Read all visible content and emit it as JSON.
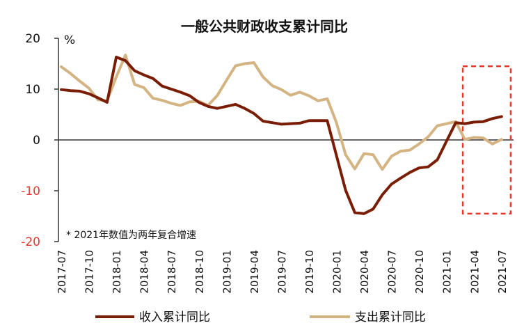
{
  "chart_data": {
    "type": "line",
    "title": "一般公共财政收支累计同比",
    "unit_label": "%",
    "note": "* 2021年数值为两年复合增速",
    "ylim": [
      -20,
      20
    ],
    "yticks": [
      {
        "value": 20,
        "label": "20",
        "color": "#111111"
      },
      {
        "value": 10,
        "label": "10",
        "color": "#111111"
      },
      {
        "value": 0,
        "label": "0",
        "color": "#111111"
      },
      {
        "value": -10,
        "label": "-10",
        "color": "#e8382e"
      },
      {
        "value": -20,
        "label": "-20",
        "color": "#e8382e"
      }
    ],
    "xlim": [
      "2017-07",
      "2021-08"
    ],
    "xtick_labels": [
      "2017-07",
      "2017-10",
      "2018-01",
      "2018-04",
      "2018-07",
      "2018-10",
      "2019-01",
      "2019-04",
      "2019-07",
      "2019-10",
      "2020-01",
      "2020-04",
      "2020-07",
      "2020-10",
      "2021-01",
      "2021-04",
      "2021-07"
    ],
    "highlight_box": {
      "from": "2021-03",
      "to": "2021-08",
      "ymin": -14.5,
      "ymax": 14.5,
      "color": "#e8382e",
      "style": "dashed"
    },
    "series": [
      {
        "name": "收入累计同比",
        "color": "#7a1d05",
        "points": [
          [
            "2017-07",
            9.9
          ],
          [
            "2017-08",
            9.7
          ],
          [
            "2017-09",
            9.6
          ],
          [
            "2017-10",
            9.1
          ],
          [
            "2017-11",
            8.3
          ],
          [
            "2017-12",
            7.4
          ],
          [
            "2018-01",
            16.3
          ],
          [
            "2018-02",
            15.6
          ],
          [
            "2018-03",
            13.6
          ],
          [
            "2018-04",
            12.8
          ],
          [
            "2018-05",
            12.1
          ],
          [
            "2018-06",
            10.6
          ],
          [
            "2018-07",
            10.0
          ],
          [
            "2018-08",
            9.4
          ],
          [
            "2018-09",
            8.7
          ],
          [
            "2018-10",
            7.4
          ],
          [
            "2018-11",
            6.6
          ],
          [
            "2018-12",
            6.2
          ],
          [
            "2019-01",
            6.6
          ],
          [
            "2019-02",
            7.0
          ],
          [
            "2019-03",
            6.2
          ],
          [
            "2019-04",
            5.2
          ],
          [
            "2019-05",
            3.7
          ],
          [
            "2019-06",
            3.4
          ],
          [
            "2019-07",
            3.1
          ],
          [
            "2019-08",
            3.2
          ],
          [
            "2019-09",
            3.3
          ],
          [
            "2019-10",
            3.8
          ],
          [
            "2019-11",
            3.8
          ],
          [
            "2019-12",
            3.8
          ],
          [
            "2020-02",
            -9.9
          ],
          [
            "2020-03",
            -14.3
          ],
          [
            "2020-04",
            -14.5
          ],
          [
            "2020-05",
            -13.6
          ],
          [
            "2020-06",
            -10.8
          ],
          [
            "2020-07",
            -8.7
          ],
          [
            "2020-08",
            -7.5
          ],
          [
            "2020-09",
            -6.4
          ],
          [
            "2020-10",
            -5.5
          ],
          [
            "2020-11",
            -5.3
          ],
          [
            "2020-12",
            -3.9
          ],
          [
            "2021-02",
            3.4
          ],
          [
            "2021-03",
            3.2
          ],
          [
            "2021-04",
            3.5
          ],
          [
            "2021-05",
            3.6
          ],
          [
            "2021-06",
            4.2
          ],
          [
            "2021-07",
            4.6
          ]
        ]
      },
      {
        "name": "支出累计同比",
        "color": "#d4b483",
        "points": [
          [
            "2017-07",
            14.4
          ],
          [
            "2017-08",
            13.1
          ],
          [
            "2017-09",
            11.6
          ],
          [
            "2017-10",
            10.2
          ],
          [
            "2017-11",
            7.9
          ],
          [
            "2017-12",
            7.7
          ],
          [
            "2018-01",
            12.4
          ],
          [
            "2018-02",
            16.7
          ],
          [
            "2018-03",
            10.9
          ],
          [
            "2018-04",
            10.3
          ],
          [
            "2018-05",
            8.2
          ],
          [
            "2018-06",
            7.8
          ],
          [
            "2018-07",
            7.2
          ],
          [
            "2018-08",
            6.8
          ],
          [
            "2018-09",
            7.5
          ],
          [
            "2018-10",
            7.6
          ],
          [
            "2018-11",
            6.8
          ],
          [
            "2018-12",
            8.7
          ],
          [
            "2019-01",
            11.7
          ],
          [
            "2019-02",
            14.6
          ],
          [
            "2019-03",
            15.0
          ],
          [
            "2019-04",
            15.2
          ],
          [
            "2019-05",
            12.4
          ],
          [
            "2019-06",
            10.7
          ],
          [
            "2019-07",
            9.9
          ],
          [
            "2019-08",
            8.8
          ],
          [
            "2019-09",
            9.4
          ],
          [
            "2019-10",
            8.7
          ],
          [
            "2019-11",
            7.7
          ],
          [
            "2019-12",
            8.1
          ],
          [
            "2020-01",
            3.4
          ],
          [
            "2020-02",
            -2.9
          ],
          [
            "2020-03",
            -5.7
          ],
          [
            "2020-04",
            -2.7
          ],
          [
            "2020-05",
            -2.9
          ],
          [
            "2020-06",
            -5.8
          ],
          [
            "2020-07",
            -3.2
          ],
          [
            "2020-08",
            -2.2
          ],
          [
            "2020-09",
            -2.0
          ],
          [
            "2020-10",
            -0.8
          ],
          [
            "2020-11",
            0.6
          ],
          [
            "2020-12",
            2.8
          ],
          [
            "2021-02",
            3.6
          ],
          [
            "2021-03",
            0.1
          ],
          [
            "2021-04",
            0.5
          ],
          [
            "2021-05",
            0.4
          ],
          [
            "2021-06",
            -0.8
          ],
          [
            "2021-07",
            0.1
          ]
        ]
      }
    ],
    "legend_position": "bottom"
  },
  "styles": {
    "axis_color": "#333333",
    "text_color": "#111111"
  }
}
